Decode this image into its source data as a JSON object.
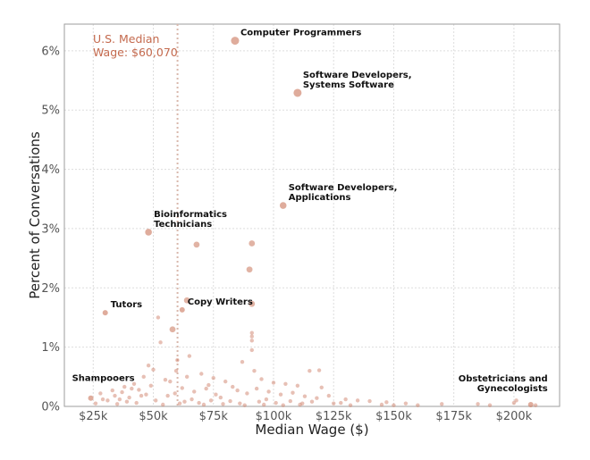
{
  "chart_data": {
    "type": "scatter",
    "xlabel": "Median Wage ($)",
    "ylabel": "Percent of Conversations",
    "xlim": [
      13000,
      219000
    ],
    "ylim": [
      0,
      6.45
    ],
    "x_ticks": [
      25000,
      50000,
      75000,
      100000,
      125000,
      150000,
      175000,
      200000
    ],
    "x_tick_labels": [
      "$25k",
      "$50k",
      "$75k",
      "$100k",
      "$125k",
      "$150k",
      "$175k",
      "$200k"
    ],
    "y_ticks": [
      0,
      1,
      2,
      3,
      4,
      5,
      6
    ],
    "y_tick_labels": [
      "0%",
      "1%",
      "2%",
      "3%",
      "4%",
      "5%",
      "6%"
    ],
    "grid": true,
    "reference_line": {
      "x": 60070,
      "label_line1": "U.S. Median",
      "label_line2": "Wage: $60,070",
      "color": "#c46a4e"
    },
    "labeled_points": [
      {
        "x": 84000,
        "y": 6.17,
        "label_line1": "Computer Programmers",
        "label_line2": ""
      },
      {
        "x": 110000,
        "y": 5.29,
        "label_line1": "Software Developers,",
        "label_line2": "Systems Software"
      },
      {
        "x": 104000,
        "y": 3.39,
        "label_line1": "Software Developers,",
        "label_line2": "Applications"
      },
      {
        "x": 48000,
        "y": 2.94,
        "label_line1": "Bioinformatics",
        "label_line2": "Technicians"
      },
      {
        "x": 30000,
        "y": 1.58,
        "label_line1": "Tutors",
        "label_line2": ""
      },
      {
        "x": 62000,
        "y": 1.63,
        "label_line1": "Copy Writers",
        "label_line2": ""
      },
      {
        "x": 24000,
        "y": 0.14,
        "label_line1": "Shampooers",
        "label_line2": ""
      },
      {
        "x": 207000,
        "y": 0.03,
        "label_line1": "Obstetricians and",
        "label_line2": "Gynecologists"
      }
    ],
    "medium_points": [
      {
        "x": 68000,
        "y": 2.73
      },
      {
        "x": 91000,
        "y": 2.75
      },
      {
        "x": 90000,
        "y": 2.31
      },
      {
        "x": 91000,
        "y": 1.73
      },
      {
        "x": 64000,
        "y": 1.79
      },
      {
        "x": 58000,
        "y": 1.3
      }
    ],
    "small_points": [
      [
        52000,
        1.5
      ],
      [
        53000,
        1.08
      ],
      [
        91000,
        1.24
      ],
      [
        91000,
        1.18
      ],
      [
        91000,
        1.11
      ],
      [
        91000,
        0.95
      ],
      [
        48000,
        0.69
      ],
      [
        50000,
        0.62
      ],
      [
        65000,
        0.85
      ],
      [
        60000,
        0.78
      ],
      [
        87000,
        0.75
      ],
      [
        115000,
        0.6
      ],
      [
        119000,
        0.61
      ],
      [
        46000,
        0.5
      ],
      [
        55000,
        0.45
      ],
      [
        70000,
        0.55
      ],
      [
        75000,
        0.48
      ],
      [
        80000,
        0.42
      ],
      [
        95000,
        0.46
      ],
      [
        100000,
        0.4
      ],
      [
        105000,
        0.38
      ],
      [
        110000,
        0.35
      ],
      [
        120000,
        0.32
      ],
      [
        42000,
        0.38
      ],
      [
        38000,
        0.33
      ],
      [
        33000,
        0.27
      ],
      [
        28000,
        0.22
      ],
      [
        44000,
        0.28
      ],
      [
        62000,
        0.31
      ],
      [
        67000,
        0.25
      ],
      [
        72000,
        0.3
      ],
      [
        85000,
        0.27
      ],
      [
        89000,
        0.22
      ],
      [
        93000,
        0.3
      ],
      [
        98000,
        0.25
      ],
      [
        103000,
        0.2
      ],
      [
        108000,
        0.23
      ],
      [
        113000,
        0.17
      ],
      [
        118000,
        0.14
      ],
      [
        123000,
        0.18
      ],
      [
        130000,
        0.12
      ],
      [
        135000,
        0.1
      ],
      [
        140000,
        0.09
      ],
      [
        147000,
        0.07
      ],
      [
        155000,
        0.05
      ],
      [
        170000,
        0.04
      ],
      [
        185000,
        0.04
      ],
      [
        200000,
        0.06
      ],
      [
        201000,
        0.1
      ],
      [
        26000,
        0.05
      ],
      [
        31000,
        0.1
      ],
      [
        36000,
        0.12
      ],
      [
        40000,
        0.15
      ],
      [
        47000,
        0.2
      ],
      [
        51000,
        0.1
      ],
      [
        56000,
        0.18
      ],
      [
        59000,
        0.22
      ],
      [
        63000,
        0.08
      ],
      [
        66000,
        0.12
      ],
      [
        69000,
        0.06
      ],
      [
        74000,
        0.1
      ],
      [
        78000,
        0.15
      ],
      [
        82000,
        0.09
      ],
      [
        86000,
        0.05
      ],
      [
        94000,
        0.08
      ],
      [
        97000,
        0.12
      ],
      [
        101000,
        0.06
      ],
      [
        107000,
        0.09
      ],
      [
        112000,
        0.05
      ],
      [
        116000,
        0.08
      ],
      [
        125000,
        0.05
      ],
      [
        128000,
        0.06
      ],
      [
        145000,
        0.03
      ],
      [
        160000,
        0.02
      ],
      [
        190000,
        0.02
      ],
      [
        209000,
        0.02
      ],
      [
        35000,
        0.04
      ],
      [
        43000,
        0.06
      ],
      [
        54000,
        0.03
      ],
      [
        61000,
        0.05
      ],
      [
        71000,
        0.03
      ],
      [
        79000,
        0.04
      ],
      [
        88000,
        0.02
      ],
      [
        96000,
        0.03
      ],
      [
        104000,
        0.02
      ],
      [
        111000,
        0.03
      ],
      [
        132000,
        0.02
      ],
      [
        150000,
        0.02
      ],
      [
        57000,
        0.42
      ],
      [
        49000,
        0.35
      ],
      [
        64000,
        0.5
      ],
      [
        73000,
        0.36
      ],
      [
        83000,
        0.33
      ],
      [
        76000,
        0.2
      ],
      [
        92000,
        0.6
      ],
      [
        59500,
        0.6
      ],
      [
        45000,
        0.18
      ],
      [
        39000,
        0.08
      ],
      [
        29000,
        0.12
      ],
      [
        34000,
        0.18
      ],
      [
        37000,
        0.24
      ],
      [
        41000,
        0.3
      ]
    ]
  }
}
